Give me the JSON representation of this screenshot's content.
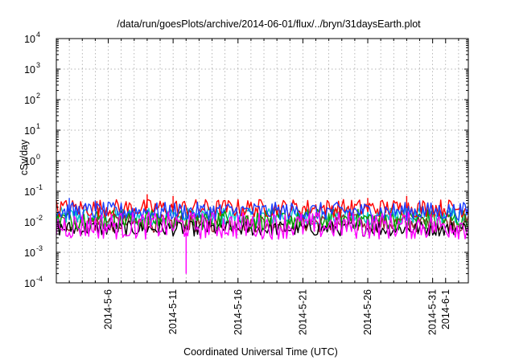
{
  "chart_data": {
    "type": "line",
    "title": "/data/run/goesPlots/archive/2014-06-01/flux/../bryn/31daysEarth.plot",
    "xlabel": "Coordinated Universal Time (UTC)",
    "ylabel": "cSv/day",
    "y_scale": "log",
    "ylim": [
      0.0001,
      10000
    ],
    "xlim": [
      "2014-05-02",
      "2014-06-02T18:00"
    ],
    "grid": true,
    "legend": "none",
    "y_ticks": [
      {
        "base": "10",
        "exp": "-4"
      },
      {
        "base": "10",
        "exp": "-3"
      },
      {
        "base": "10",
        "exp": "-2"
      },
      {
        "base": "10",
        "exp": "-1"
      },
      {
        "base": "10",
        "exp": "0"
      },
      {
        "base": "10",
        "exp": "1"
      },
      {
        "base": "10",
        "exp": "2"
      },
      {
        "base": "10",
        "exp": "3"
      },
      {
        "base": "10",
        "exp": "4"
      }
    ],
    "x_ticks": [
      {
        "label": "2014-5-6",
        "date": "2014-05-06"
      },
      {
        "label": "2014-5-11",
        "date": "2014-05-11"
      },
      {
        "label": "2014-5-16",
        "date": "2014-05-16"
      },
      {
        "label": "2014-5-21",
        "date": "2014-05-21"
      },
      {
        "label": "2014-5-26",
        "date": "2014-05-26"
      },
      {
        "label": "2014-5-31",
        "date": "2014-05-31"
      },
      {
        "label": "2014-6-1",
        "date": "2014-06-01"
      }
    ],
    "minor_grid_dates": [
      "2014-05-03",
      "2014-05-04",
      "2014-05-05",
      "2014-05-07",
      "2014-05-08",
      "2014-05-09",
      "2014-05-10",
      "2014-05-12",
      "2014-05-13",
      "2014-05-14",
      "2014-05-15",
      "2014-05-17",
      "2014-05-18",
      "2014-05-19",
      "2014-05-20",
      "2014-05-22",
      "2014-05-23",
      "2014-05-24",
      "2014-05-25",
      "2014-05-27",
      "2014-05-28",
      "2014-05-29",
      "2014-05-30",
      "2014-06-02"
    ],
    "series": [
      {
        "color": "#ff0000",
        "level": 0.028,
        "spread": 0.3,
        "spikes": [
          [
            "2014-05-09",
            0.08
          ],
          [
            "2014-05-11",
            0.07
          ],
          [
            "2014-05-26",
            0.06
          ],
          [
            "2014-05-29",
            0.07
          ]
        ]
      },
      {
        "color": "#00a000",
        "level": 0.012,
        "spread": 0.35,
        "spikes": []
      },
      {
        "color": "#1a3dff",
        "level": 0.022,
        "spread": 0.3,
        "spikes": [
          [
            "2014-05-03",
            0.06
          ],
          [
            "2014-05-05",
            0.05
          ],
          [
            "2014-05-30",
            0.05
          ]
        ]
      },
      {
        "color": "#ff00ff",
        "level": 0.0075,
        "spread": 0.45,
        "spikes": [
          [
            "2014-05-12",
            0.0002
          ]
        ]
      },
      {
        "color": "#00c8c8",
        "level": 0.015,
        "spread": 0.3,
        "spikes": []
      },
      {
        "color": "#8b2a2a",
        "level": 0.009,
        "spread": 0.3,
        "spikes": []
      },
      {
        "color": "#000000",
        "level": 0.006,
        "spread": 0.25,
        "spikes": [
          [
            "2014-05-24",
            0.004
          ]
        ]
      }
    ]
  }
}
